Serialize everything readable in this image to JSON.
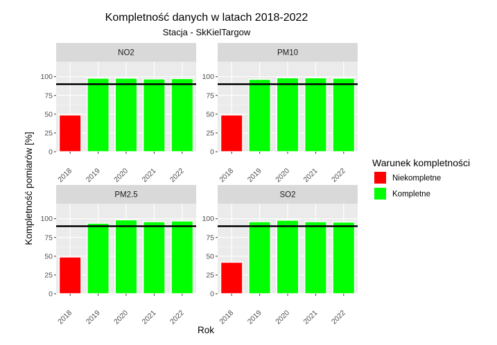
{
  "chart_data": {
    "type": "bar",
    "title": "Kompletność danych w  latach 2018-2022",
    "subtitle": "Stacja - SkKielTargow",
    "xlabel": "Rok",
    "ylabel": "Kompletność pomiarów [%]",
    "categories": [
      "2018",
      "2019",
      "2020",
      "2021",
      "2022"
    ],
    "ylim": [
      0,
      120
    ],
    "yticks": [
      0,
      25,
      50,
      75,
      100
    ],
    "threshold": 90,
    "grid": true,
    "legend_position": "right",
    "legend": {
      "title": "Warunek kompletności",
      "items": [
        {
          "label": "Niekompletne",
          "color": "#ff0000"
        },
        {
          "label": "Kompletne",
          "color": "#00ff00"
        }
      ]
    },
    "panels": [
      {
        "name": "NO2",
        "values": [
          49,
          98,
          98,
          97,
          97.5
        ],
        "status": [
          "Niekompletne",
          "Kompletne",
          "Kompletne",
          "Kompletne",
          "Kompletne"
        ]
      },
      {
        "name": "PM10",
        "values": [
          49,
          96.5,
          98.5,
          98.5,
          98
        ],
        "status": [
          "Niekompletne",
          "Kompletne",
          "Kompletne",
          "Kompletne",
          "Kompletne"
        ]
      },
      {
        "name": "PM2.5",
        "values": [
          49,
          94,
          98.5,
          96,
          97
        ],
        "status": [
          "Niekompletne",
          "Kompletne",
          "Kompletne",
          "Kompletne",
          "Kompletne"
        ]
      },
      {
        "name": "SO2",
        "values": [
          42,
          96,
          98,
          96,
          95.5
        ],
        "status": [
          "Niekompletne",
          "Kompletne",
          "Kompletne",
          "Kompletne",
          "Kompletne"
        ]
      }
    ]
  }
}
